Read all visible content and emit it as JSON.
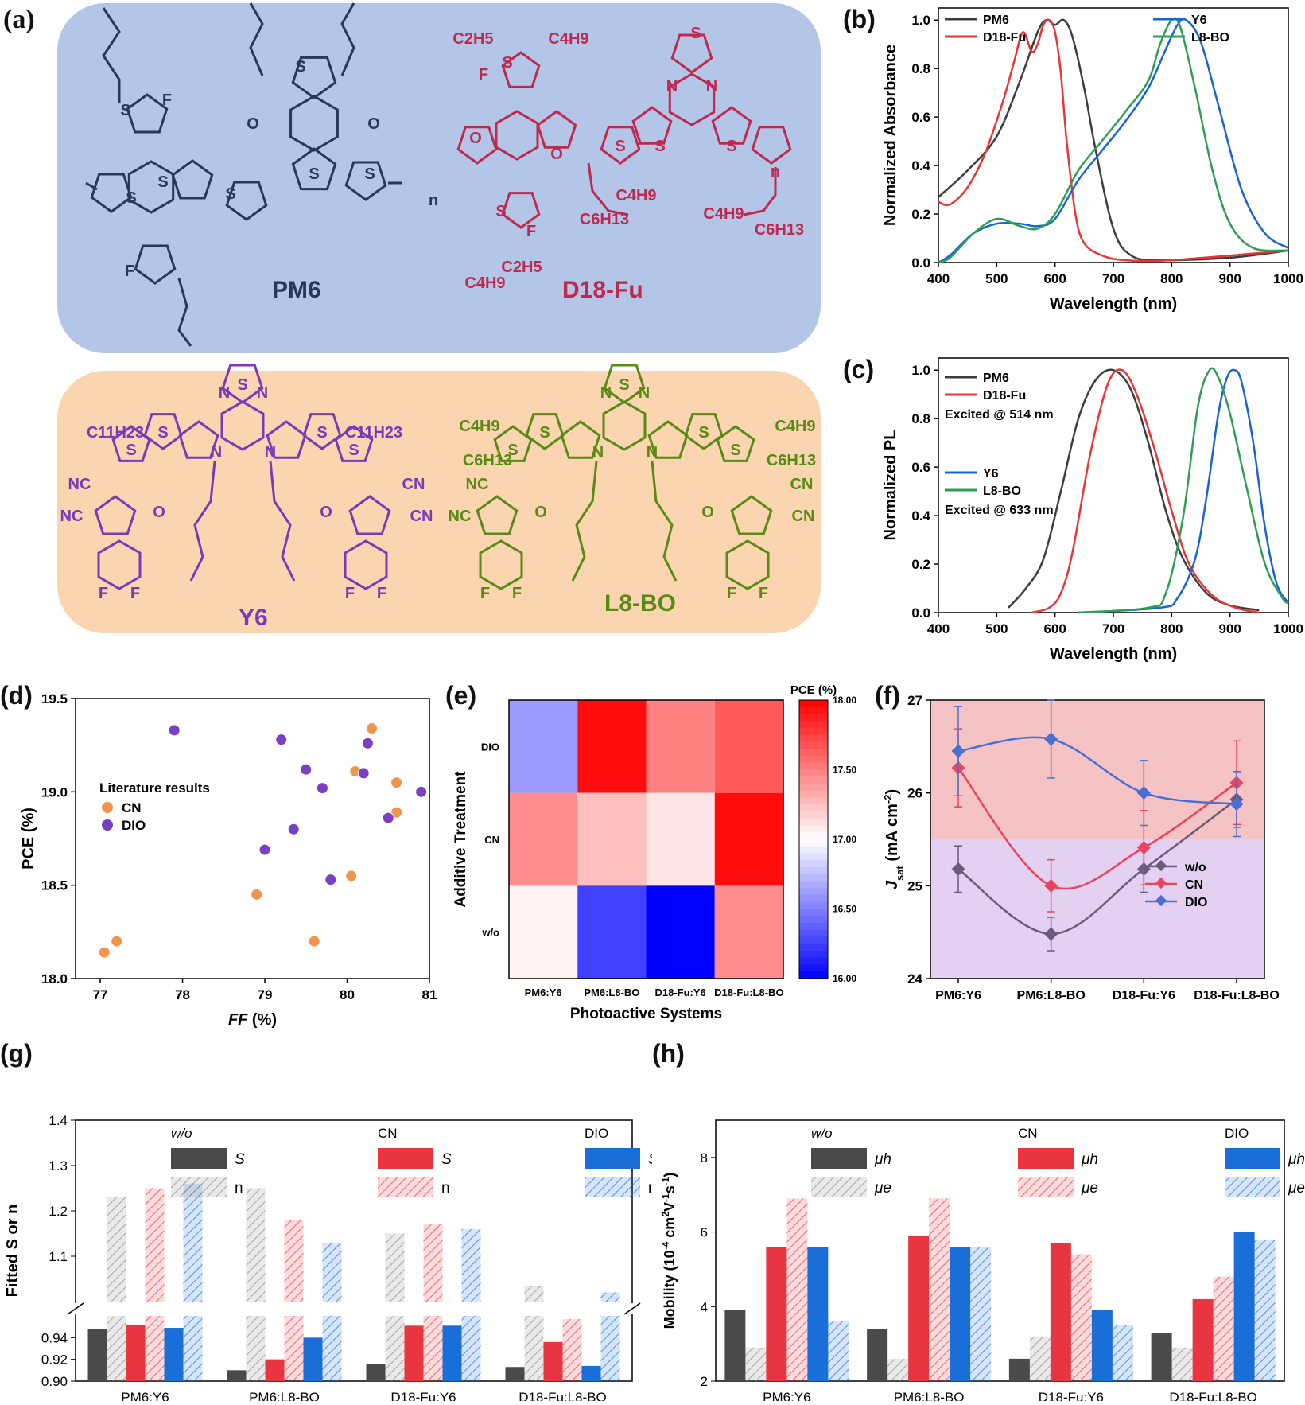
{
  "colors": {
    "pm6": "#3d3d3d",
    "d18": "#e83535",
    "y6": "#1a63d6",
    "l8": "#2e9e55",
    "wo": "#4a4a4a",
    "cn": "#e83540",
    "dio": "#1a6ed8",
    "donor_bg": "#b3c6e7",
    "acceptor_bg": "#fad5b0",
    "pm6_text": "#27395a",
    "d18_text": "#c0284f",
    "y6_text": "#7a3ab8",
    "l8_text": "#5a8a16"
  },
  "panel_a": {
    "label": "(a)",
    "molecules": [
      "PM6",
      "D18-Fu",
      "Y6",
      "L8-BO"
    ],
    "atoms": {
      "pm6": [
        "F",
        "S",
        "S",
        "S",
        "S",
        "O",
        "O",
        "S",
        "S",
        "S",
        "F",
        "n"
      ],
      "d18": [
        "C2H5",
        "C4H9",
        "F",
        "S",
        "N",
        "N",
        "S",
        "O",
        "O",
        "S",
        "S",
        "S",
        "n",
        "C4H9",
        "C6H13",
        "C4H9",
        "C6H13",
        "S",
        "F",
        "C4H9",
        "C2H5"
      ],
      "y6": [
        "S",
        "N",
        "N",
        "C11H23",
        "C11H23",
        "S",
        "S",
        "S",
        "S",
        "N",
        "N",
        "NC",
        "NC",
        "O",
        "O",
        "CN",
        "CN",
        "F",
        "F",
        "F",
        "F"
      ],
      "l8": [
        "S",
        "N",
        "N",
        "C4H9",
        "C6H13",
        "C4H9",
        "C6H13",
        "S",
        "S",
        "S",
        "S",
        "N",
        "N",
        "NC",
        "NC",
        "O",
        "O",
        "CN",
        "CN",
        "F",
        "F",
        "F",
        "F"
      ]
    }
  },
  "chart_data": [
    {
      "id": "b",
      "label": "(b)",
      "type": "line",
      "xlabel": "Wavelength (nm)",
      "ylabel": "Normalized Absorbance",
      "xlim": [
        400,
        1000
      ],
      "ylim": [
        0,
        1.05
      ],
      "xticks": [
        "400",
        "500",
        "600",
        "700",
        "800",
        "900",
        "1000"
      ],
      "yticks": [
        "0.0",
        "0.2",
        "0.4",
        "0.6",
        "0.8",
        "1.0"
      ],
      "legend": [
        "PM6",
        "D18-Fu",
        "Y6",
        "L8-BO"
      ],
      "series": [
        {
          "name": "PM6",
          "x": [
            400,
            450,
            500,
            540,
            570,
            585,
            600,
            615,
            630,
            650,
            670,
            700,
            730,
            780,
            900,
            1000
          ],
          "y": [
            0.27,
            0.38,
            0.52,
            0.75,
            0.95,
            1.0,
            0.98,
            1.0,
            0.93,
            0.72,
            0.46,
            0.14,
            0.03,
            0.01,
            0.02,
            0.05
          ]
        },
        {
          "name": "D18-Fu",
          "x": [
            400,
            420,
            450,
            480,
            510,
            530,
            545,
            560,
            570,
            580,
            590,
            600,
            610,
            620,
            635,
            650,
            680,
            720,
            800,
            1000
          ],
          "y": [
            0.25,
            0.24,
            0.31,
            0.45,
            0.66,
            0.83,
            0.95,
            0.87,
            0.9,
            0.98,
            1.0,
            0.95,
            0.78,
            0.5,
            0.2,
            0.08,
            0.03,
            0.01,
            0.01,
            0.05
          ]
        },
        {
          "name": "Y6",
          "x": [
            400,
            420,
            460,
            500,
            540,
            570,
            600,
            640,
            680,
            720,
            760,
            790,
            810,
            825,
            850,
            880,
            920,
            960,
            1000
          ],
          "y": [
            0.0,
            0.03,
            0.12,
            0.16,
            0.16,
            0.15,
            0.18,
            0.34,
            0.46,
            0.58,
            0.72,
            0.88,
            0.98,
            1.0,
            0.91,
            0.65,
            0.3,
            0.12,
            0.06
          ]
        },
        {
          "name": "L8-BO",
          "x": [
            400,
            420,
            460,
            500,
            540,
            570,
            600,
            640,
            680,
            720,
            760,
            780,
            800,
            815,
            840,
            870,
            900,
            940,
            1000
          ],
          "y": [
            0.0,
            0.02,
            0.12,
            0.18,
            0.15,
            0.14,
            0.2,
            0.38,
            0.5,
            0.62,
            0.75,
            0.9,
            1.0,
            0.97,
            0.72,
            0.38,
            0.16,
            0.06,
            0.05
          ]
        }
      ]
    },
    {
      "id": "c",
      "label": "(c)",
      "type": "line",
      "xlabel": "Wavelength (nm)",
      "ylabel": "Normalized PL",
      "xlim": [
        400,
        1000
      ],
      "ylim": [
        0,
        1.05
      ],
      "xticks": [
        "400",
        "500",
        "600",
        "700",
        "800",
        "900",
        "1000"
      ],
      "yticks": [
        "0.0",
        "0.2",
        "0.4",
        "0.6",
        "0.8",
        "1.0"
      ],
      "legend": [
        "PM6",
        "D18-Fu",
        "Y6",
        "L8-BO"
      ],
      "notes": [
        "Excited @ 514 nm",
        "Excited @ 633 nm"
      ],
      "series": [
        {
          "name": "PM6",
          "x": [
            520,
            550,
            580,
            610,
            640,
            670,
            700,
            730,
            760,
            790,
            820,
            860,
            900,
            950
          ],
          "y": [
            0.02,
            0.1,
            0.22,
            0.5,
            0.8,
            0.96,
            1.0,
            0.92,
            0.7,
            0.42,
            0.22,
            0.08,
            0.03,
            0.01
          ]
        },
        {
          "name": "D18-Fu",
          "x": [
            560,
            590,
            610,
            630,
            660,
            690,
            715,
            740,
            770,
            800,
            830,
            870,
            910,
            950
          ],
          "y": [
            0.0,
            0.02,
            0.08,
            0.25,
            0.65,
            0.94,
            1.0,
            0.9,
            0.68,
            0.42,
            0.2,
            0.07,
            0.02,
            0.0
          ]
        },
        {
          "name": "Y6",
          "x": [
            640,
            780,
            810,
            840,
            860,
            880,
            895,
            908,
            920,
            940,
            960,
            980,
            1000
          ],
          "y": [
            0.0,
            0.02,
            0.06,
            0.22,
            0.48,
            0.82,
            0.97,
            1.0,
            0.95,
            0.7,
            0.35,
            0.12,
            0.04
          ]
        },
        {
          "name": "L8-BO",
          "x": [
            640,
            760,
            790,
            820,
            845,
            865,
            880,
            900,
            930,
            960,
            990,
            1000
          ],
          "y": [
            0.0,
            0.02,
            0.08,
            0.4,
            0.85,
            1.0,
            0.97,
            0.82,
            0.5,
            0.2,
            0.06,
            0.04
          ]
        }
      ]
    },
    {
      "id": "d",
      "label": "(d)",
      "type": "scatter",
      "xlabel": "FF",
      "xlabel_unit": "(%)",
      "ylabel": "PCE (%)",
      "xlim": [
        76.7,
        81
      ],
      "ylim": [
        18.0,
        19.5
      ],
      "xticks": [
        "77",
        "78",
        "79",
        "80",
        "81"
      ],
      "yticks": [
        "18.0",
        "18.5",
        "19.0",
        "19.5"
      ],
      "legend_title": "Literature results",
      "series": [
        {
          "name": "CN",
          "points": [
            [
              77.05,
              18.14
            ],
            [
              77.2,
              18.2
            ],
            [
              78.9,
              18.45
            ],
            [
              79.6,
              18.2
            ],
            [
              80.05,
              18.55
            ],
            [
              80.1,
              19.11
            ],
            [
              80.3,
              19.34
            ],
            [
              80.6,
              19.05
            ],
            [
              80.6,
              18.89
            ]
          ]
        },
        {
          "name": "DIO",
          "points": [
            [
              77.9,
              19.33
            ],
            [
              79.2,
              19.28
            ],
            [
              79.5,
              19.12
            ],
            [
              79.7,
              19.02
            ],
            [
              79.35,
              18.8
            ],
            [
              79.0,
              18.69
            ],
            [
              79.8,
              18.53
            ],
            [
              80.25,
              19.26
            ],
            [
              80.2,
              19.1
            ],
            [
              80.5,
              18.86
            ],
            [
              80.9,
              19.0
            ]
          ]
        }
      ]
    },
    {
      "id": "e",
      "label": "(e)",
      "type": "heatmap",
      "xlabel": "Photoactive Systems",
      "ylabel": "Additive Treatment",
      "colorbar_label": "PCE (%)",
      "colorbar_ticks": [
        "16.00",
        "16.50",
        "17.00",
        "17.50",
        "18.00"
      ],
      "categories": [
        "PM6:Y6",
        "PM6:L8-BO",
        "D18-Fu:Y6",
        "D18-Fu:L8-BO"
      ],
      "rows": [
        "DIO",
        "CN",
        "w/o"
      ],
      "values": [
        [
          16.6,
          17.95,
          17.5,
          17.65
        ],
        [
          17.45,
          17.25,
          17.1,
          17.95
        ],
        [
          17.05,
          16.25,
          16.0,
          17.45
        ]
      ],
      "range": [
        16.0,
        18.0
      ]
    },
    {
      "id": "f",
      "label": "(f)",
      "type": "line",
      "xlabel": "",
      "ylabel": "J",
      "ylabel_sub": "sat",
      "ylabel_unit": " (mA cm",
      "ylabel_sup": "-2",
      "ylabel_close": ")",
      "categories": [
        "PM6:Y6",
        "PM6:L8-BO",
        "D18-Fu:Y6",
        "D18-Fu:L8-BO"
      ],
      "ylim": [
        24,
        27
      ],
      "yticks": [
        "24",
        "25",
        "26",
        "27"
      ],
      "bands": [
        {
          "from": 25.5,
          "to": 27
        },
        {
          "from": 24,
          "to": 25.5
        }
      ],
      "series": [
        {
          "name": "w/o",
          "values": [
            25.18,
            24.48,
            25.18,
            25.93
          ],
          "err": [
            0.25,
            0.18,
            0.25,
            0.3
          ]
        },
        {
          "name": "CN",
          "values": [
            26.27,
            25.0,
            25.41,
            26.11
          ],
          "err": [
            0.42,
            0.28,
            0.4,
            0.45
          ]
        },
        {
          "name": "DIO",
          "values": [
            26.45,
            26.58,
            26.0,
            25.88
          ],
          "err": [
            0.48,
            0.42,
            0.35,
            0.35
          ]
        }
      ]
    },
    {
      "id": "g",
      "label": "(g)",
      "type": "bar",
      "ylabel": "Fitted S or n",
      "categories": [
        "PM6:Y6",
        "PM6:L8-BO",
        "D18-Fu:Y6",
        "D18-Fu:L8-BO"
      ],
      "ylim_lower": [
        0.9,
        0.96
      ],
      "ylim_upper": [
        1.0,
        1.4
      ],
      "yticks_lower": [
        "0.90",
        "0.92",
        "0.94"
      ],
      "yticks_upper": [
        "1.1",
        "1.2",
        "1.3",
        "1.4"
      ],
      "legend_groups": [
        "w/o",
        "CN",
        "DIO"
      ],
      "legend_items": [
        "S",
        "n"
      ],
      "series": [
        {
          "name": "w/o S",
          "values": [
            0.948,
            0.91,
            0.916,
            0.913
          ]
        },
        {
          "name": "w/o n",
          "values": [
            1.23,
            1.25,
            1.15,
            1.035
          ]
        },
        {
          "name": "CN S",
          "values": [
            0.952,
            0.92,
            0.951,
            0.936
          ]
        },
        {
          "name": "CN n",
          "values": [
            1.25,
            1.18,
            1.17,
            0.957
          ]
        },
        {
          "name": "DIO S",
          "values": [
            0.949,
            0.94,
            0.951,
            0.914
          ]
        },
        {
          "name": "DIO n",
          "values": [
            1.26,
            1.13,
            1.16,
            1.02
          ]
        }
      ]
    },
    {
      "id": "h",
      "label": "(h)",
      "type": "bar",
      "ylabel": "Mobility (10",
      "ylabel_sup1": "-4",
      "ylabel_mid": " cm",
      "ylabel_sup2": "2",
      "ylabel_tail": "V",
      "ylabel_sup3": "-1",
      "ylabel_tail2": "s",
      "ylabel_sup4": "-1",
      "ylabel_close": ")",
      "categories": [
        "PM6:Y6",
        "PM6:L8-BO",
        "D18-Fu:Y6",
        "D18-Fu:L8-BO"
      ],
      "ylim": [
        2,
        9
      ],
      "yticks": [
        "2",
        "4",
        "6",
        "8"
      ],
      "legend_groups": [
        "w/o",
        "CN",
        "DIO"
      ],
      "legend_items": [
        "μh",
        "μe"
      ],
      "series": [
        {
          "name": "w/o μh",
          "values": [
            3.9,
            3.4,
            2.6,
            3.3
          ]
        },
        {
          "name": "w/o μe",
          "values": [
            2.9,
            2.6,
            3.2,
            2.9
          ]
        },
        {
          "name": "CN μh",
          "values": [
            5.6,
            5.9,
            5.7,
            4.2
          ]
        },
        {
          "name": "CN μe",
          "values": [
            6.9,
            6.9,
            5.4,
            4.8
          ]
        },
        {
          "name": "DIO μh",
          "values": [
            5.6,
            5.6,
            3.9,
            6.0
          ]
        },
        {
          "name": "DIO μe",
          "values": [
            3.6,
            5.6,
            3.5,
            5.8
          ]
        }
      ]
    }
  ]
}
